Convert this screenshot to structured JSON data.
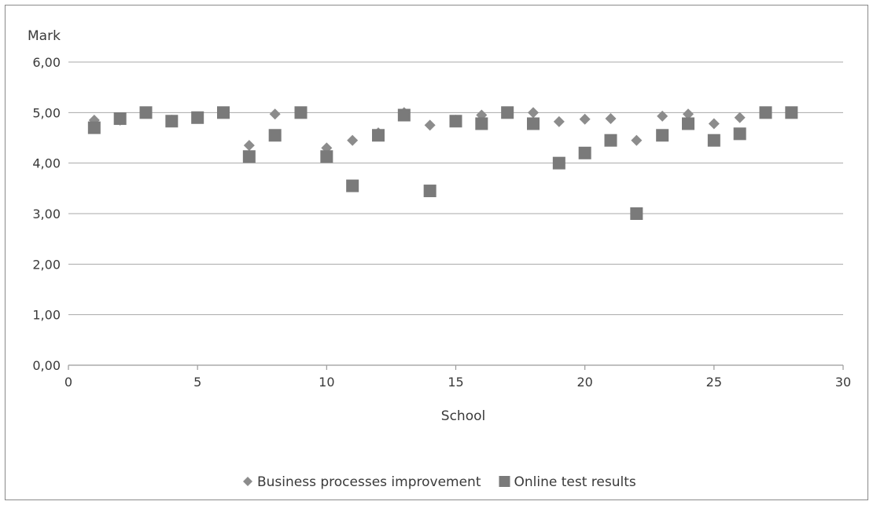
{
  "chart_data": {
    "type": "scatter",
    "title": "",
    "xlabel": "School",
    "ylabel": "Mark",
    "xlim": [
      0,
      30
    ],
    "ylim": [
      0,
      6
    ],
    "x_ticks": [
      0,
      5,
      10,
      15,
      20,
      25,
      30
    ],
    "x_tick_labels": [
      "0",
      "5",
      "10",
      "15",
      "20",
      "25",
      "30"
    ],
    "y_ticks": [
      0,
      1,
      2,
      3,
      4,
      5,
      6
    ],
    "y_tick_labels": [
      "0,00",
      "1,00",
      "2,00",
      "3,00",
      "4,00",
      "5,00",
      "6,00"
    ],
    "grid": "horizontal",
    "legend_position": "bottom",
    "series": [
      {
        "name": "Business processes improvement",
        "marker": "diamond",
        "color": "#8c8c8c",
        "points": [
          [
            1,
            4.85
          ],
          [
            2,
            4.85
          ],
          [
            3,
            5.0
          ],
          [
            4,
            4.85
          ],
          [
            5,
            4.9
          ],
          [
            6,
            5.0
          ],
          [
            7,
            4.35
          ],
          [
            8,
            4.97
          ],
          [
            9,
            5.0
          ],
          [
            10,
            4.3
          ],
          [
            11,
            4.45
          ],
          [
            12,
            4.6
          ],
          [
            13,
            5.0
          ],
          [
            14,
            4.75
          ],
          [
            15,
            4.85
          ],
          [
            16,
            4.95
          ],
          [
            17,
            5.0
          ],
          [
            18,
            5.0
          ],
          [
            19,
            4.82
          ],
          [
            20,
            4.87
          ],
          [
            21,
            4.88
          ],
          [
            22,
            4.45
          ],
          [
            23,
            4.93
          ],
          [
            24,
            4.97
          ],
          [
            25,
            4.78
          ],
          [
            26,
            4.9
          ],
          [
            27,
            5.0
          ],
          [
            28,
            5.0
          ]
        ]
      },
      {
        "name": "Online test results",
        "marker": "square",
        "color": "#7a7a7a",
        "points": [
          [
            1,
            4.7
          ],
          [
            2,
            4.88
          ],
          [
            3,
            5.0
          ],
          [
            4,
            4.83
          ],
          [
            5,
            4.9
          ],
          [
            6,
            5.0
          ],
          [
            7,
            4.13
          ],
          [
            8,
            4.55
          ],
          [
            9,
            5.0
          ],
          [
            10,
            4.13
          ],
          [
            11,
            3.55
          ],
          [
            12,
            4.55
          ],
          [
            13,
            4.95
          ],
          [
            14,
            3.45
          ],
          [
            15,
            4.83
          ],
          [
            16,
            4.78
          ],
          [
            17,
            5.0
          ],
          [
            18,
            4.78
          ],
          [
            19,
            4.0
          ],
          [
            20,
            4.2
          ],
          [
            21,
            4.45
          ],
          [
            22,
            3.0
          ],
          [
            23,
            4.55
          ],
          [
            24,
            4.78
          ],
          [
            25,
            4.45
          ],
          [
            26,
            4.58
          ],
          [
            27,
            5.0
          ],
          [
            28,
            5.0
          ]
        ]
      }
    ]
  }
}
